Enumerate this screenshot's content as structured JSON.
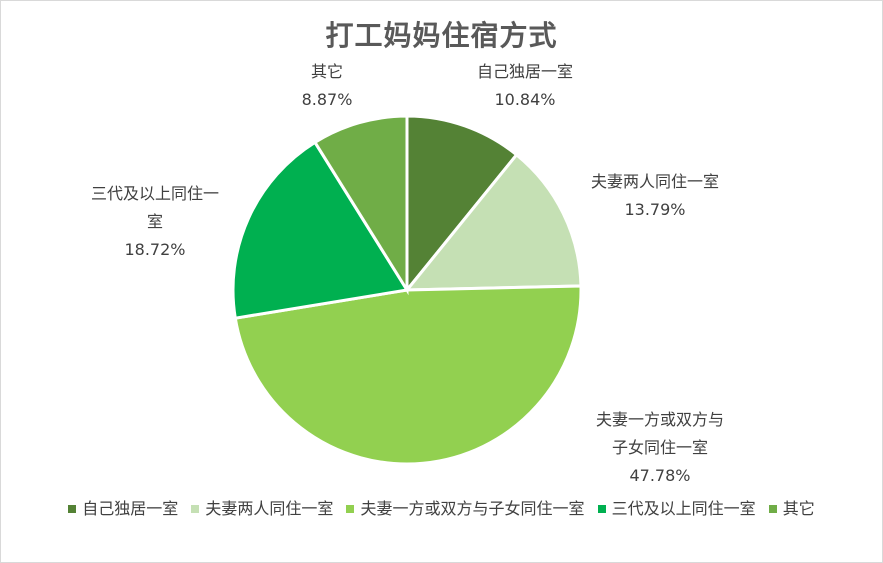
{
  "chart_data": {
    "type": "pie",
    "title": "打工妈妈住宿方式",
    "categories": [
      "自己独居一室",
      "夫妻两人同住一室",
      "夫妻一方或双方与子女同住一室",
      "三代及以上同住一室",
      "其它"
    ],
    "label_categories": [
      "自己独居一室",
      "夫妻两人同住一室",
      "夫妻一方或双方与\n子女同住一室",
      "三代及以上同住一\n室",
      "其它"
    ],
    "values": [
      10.84,
      13.79,
      47.78,
      18.72,
      8.87
    ],
    "value_labels": [
      "10.84%",
      "13.79%",
      "47.78%",
      "18.72%",
      "8.87%"
    ],
    "colors": [
      "#548235",
      "#c5e0b4",
      "#92d050",
      "#00b050",
      "#70ad47"
    ],
    "legend_position": "bottom"
  }
}
